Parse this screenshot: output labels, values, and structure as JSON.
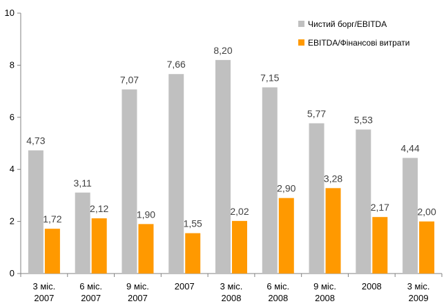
{
  "chart_data": {
    "type": "bar",
    "categories": [
      [
        "3 міс.",
        "2007"
      ],
      [
        "6 міс.",
        "2007"
      ],
      [
        "9 міс.",
        "2007"
      ],
      [
        "2007",
        ""
      ],
      [
        "3 міс.",
        "2008"
      ],
      [
        "6 міс.",
        "2008"
      ],
      [
        "9 міс.",
        "2008"
      ],
      [
        "2008",
        ""
      ],
      [
        "3 міс.",
        "2009"
      ]
    ],
    "series": [
      {
        "name": "Чистий борг/EBITDA",
        "color": "#c0c0c0",
        "values": [
          4.73,
          3.11,
          7.07,
          7.66,
          8.2,
          7.15,
          5.77,
          5.53,
          4.44
        ],
        "labels": [
          "4,73",
          "3,11",
          "7,07",
          "7,66",
          "8,20",
          "7,15",
          "5,77",
          "5,53",
          "4,44"
        ]
      },
      {
        "name": "EBITDA/Фінансові витрати",
        "color": "#ff9900",
        "values": [
          1.72,
          2.12,
          1.9,
          1.55,
          2.02,
          2.9,
          3.28,
          2.17,
          2.0
        ],
        "labels": [
          "1,72",
          "2,12",
          "1,90",
          "1,55",
          "2,02",
          "2,90",
          "3,28",
          "2,17",
          "2,00"
        ]
      }
    ],
    "ylim": [
      0,
      10
    ],
    "yticks": [
      "0",
      "2",
      "4",
      "6",
      "8",
      "10"
    ],
    "legend_position": "top-right",
    "grid": false
  }
}
